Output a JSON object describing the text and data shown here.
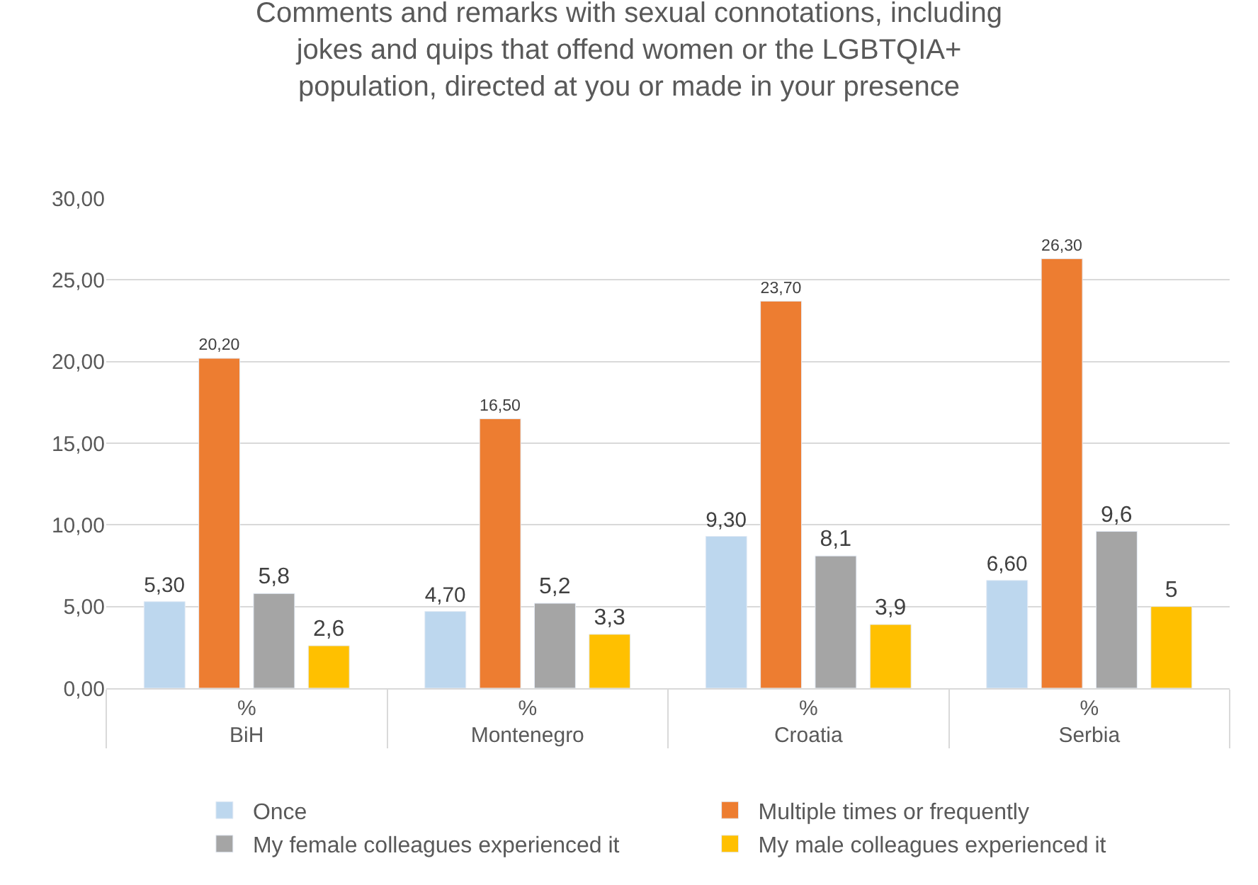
{
  "chart_data": {
    "type": "bar",
    "title": "Comments and remarks with sexual connotations, including jokes and quips that offend women or the LGBTQIA+ population, directed at you or made in your presence",
    "categories": [
      "BiH",
      "Montenegro",
      "Croatia",
      "Serbia"
    ],
    "xlabel": "%",
    "series": [
      {
        "name": "Once",
        "color": "#bdd7ee",
        "values": [
          5.3,
          4.7,
          9.3,
          6.6
        ],
        "value_labels": [
          "5,30",
          "4,70",
          "9,30",
          "6,60"
        ]
      },
      {
        "name": "Multiple times or frequently",
        "color": "#ed7d31",
        "values": [
          20.2,
          16.5,
          23.7,
          26.3
        ],
        "value_labels": [
          "20,20",
          "16,50",
          "23,70",
          "26,30"
        ]
      },
      {
        "name": "My female colleagues experienced it",
        "color": "#a5a5a5",
        "values": [
          5.8,
          5.2,
          8.1,
          9.6
        ],
        "value_labels": [
          "5,8",
          "5,2",
          "8,1",
          "9,6"
        ]
      },
      {
        "name": "My male colleagues experienced it",
        "color": "#ffc000",
        "values": [
          2.6,
          3.3,
          3.9,
          5
        ],
        "value_labels": [
          "2,6",
          "3,3",
          "3,9",
          "5"
        ]
      }
    ],
    "ylim": [
      0,
      30
    ],
    "yticks": [
      {
        "value": 0,
        "label": "0,00"
      },
      {
        "value": 5,
        "label": "5,00"
      },
      {
        "value": 10,
        "label": "10,00"
      },
      {
        "value": 15,
        "label": "15,00"
      },
      {
        "value": 20,
        "label": "20,00"
      },
      {
        "value": 25,
        "label": "25,00"
      },
      {
        "value": 30,
        "label": "30,00"
      }
    ],
    "grid": "y",
    "legend": "bottom"
  }
}
